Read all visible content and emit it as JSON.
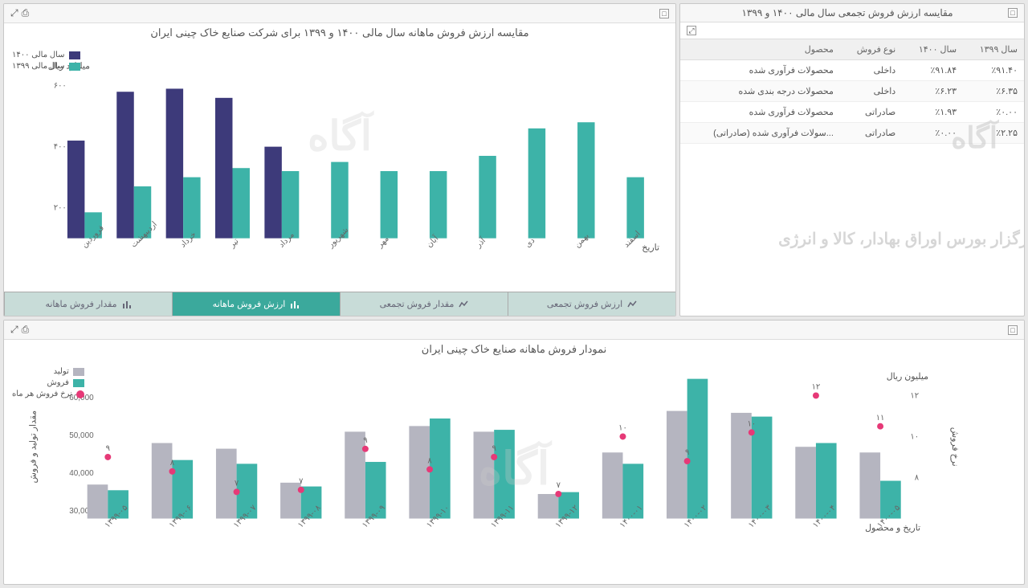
{
  "table_panel": {
    "title": "مقایسه ارزش فروش تجمعی سال مالی ۱۴۰۰ و ۱۳۹۹",
    "columns": [
      "سال ۱۳۹۹",
      "سال ۱۴۰۰",
      "نوع فروش",
      "محصول"
    ],
    "rows": [
      [
        "٪۹۱.۴۰",
        "٪۹۱.۸۴",
        "داخلی",
        "محصولات فرآوری شده"
      ],
      [
        "٪۶.۳۵",
        "٪۶.۲۳",
        "داخلی",
        "محصولات درجه بندی شده"
      ],
      [
        "٪۰.۰۰",
        "٪۱.۹۳",
        "صادراتی",
        "محصولات فرآوری شده"
      ],
      [
        "٪۲.۲۵",
        "٪۰.۰۰",
        "صادراتی",
        "...سولات فرآوری شده (صادراتی)"
      ]
    ]
  },
  "watermark_main": "آگاه",
  "watermark_sub": "کارگزار بورس اوراق بهادار، کالا و انرژی",
  "chart1": {
    "title": "مقایسه ارزش فروش ماهانه سال مالی ۱۴۰۰ و ۱۳۹۹ برای شرکت صنایع خاک چینی ایران",
    "y_label": "میلیارد ریال",
    "x_label": "تاریخ",
    "y_ticks": [
      200,
      400,
      600
    ],
    "y_min": 100,
    "y_max": 650,
    "months": [
      "فروردین",
      "اردیبهشت",
      "خرداد",
      "تیر",
      "مرداد",
      "شهریور",
      "مهر",
      "آبان",
      "آذر",
      "دی",
      "بهمن",
      "اسفند"
    ],
    "series": [
      {
        "name": "سال مالی ۱۴۰۰",
        "color": "#3d3a7a",
        "values": [
          420,
          580,
          590,
          560,
          400,
          null,
          null,
          null,
          null,
          null,
          null,
          null
        ]
      },
      {
        "name": "سال مالی ۱۳۹۹",
        "color": "#3db3a8",
        "values": [
          185,
          270,
          300,
          330,
          320,
          350,
          320,
          320,
          370,
          460,
          480,
          300
        ]
      }
    ],
    "tabs": [
      {
        "label": "ارزش فروش تجمعی",
        "icon": "line"
      },
      {
        "label": "مقدار فروش تجمعی",
        "icon": "line"
      },
      {
        "label": "ارزش فروش ماهانه",
        "icon": "bar",
        "active": true
      },
      {
        "label": "مقدار فروش ماهانه",
        "icon": "bar"
      }
    ]
  },
  "chart2": {
    "title": "نمودار فروش ماهانه صنایع خاک چینی ایران",
    "y_left_label": "مقدار تولید و فروش",
    "y_right_label": "نرخ فروش",
    "y_right_unit": "میلیون ریال",
    "x_label": "تاریخ و محصول",
    "y_left_ticks": [
      30000,
      40000,
      50000,
      60000
    ],
    "y_left_min": 28000,
    "y_left_max": 66000,
    "y_right_ticks": [
      8,
      10,
      12
    ],
    "y_right_min": 6,
    "y_right_max": 13,
    "x_labels": [
      "۱۳۹۹-۰۵",
      "۱۳۹۹-۰۶",
      "۱۳۹۹-۰۷",
      "۱۳۹۹-۰۸",
      "۱۳۹۹-۰۹",
      "۱۳۹۹-۱۰",
      "۱۳۹۹-۱۱",
      "۱۳۹۹-۱۲",
      "۱۴۰۰-۰۱",
      "۱۴۰۰-۰۲",
      "۱۴۰۰-۰۳",
      "۱۴۰۰-۰۴",
      "۱۴۰۰-۰۵"
    ],
    "series": [
      {
        "name": "تولید",
        "type": "bar",
        "color": "#b5b5c0",
        "values": [
          37000,
          48000,
          46500,
          37500,
          51000,
          52500,
          51000,
          34500,
          45500,
          56500,
          56000,
          47000,
          45500
        ]
      },
      {
        "name": "فروش",
        "type": "bar",
        "color": "#3db3a8",
        "values": [
          35500,
          43500,
          42500,
          36500,
          43000,
          54500,
          51500,
          35000,
          42500,
          65000,
          55000,
          48000,
          38000
        ]
      },
      {
        "name": "نرخ فروش هر ماه",
        "type": "dot",
        "color": "#e63977",
        "values": [
          9.0,
          8.3,
          7.3,
          7.4,
          9.4,
          8.4,
          9.0,
          7.2,
          10.0,
          8.8,
          10.2,
          12.0,
          10.5
        ]
      }
    ]
  }
}
